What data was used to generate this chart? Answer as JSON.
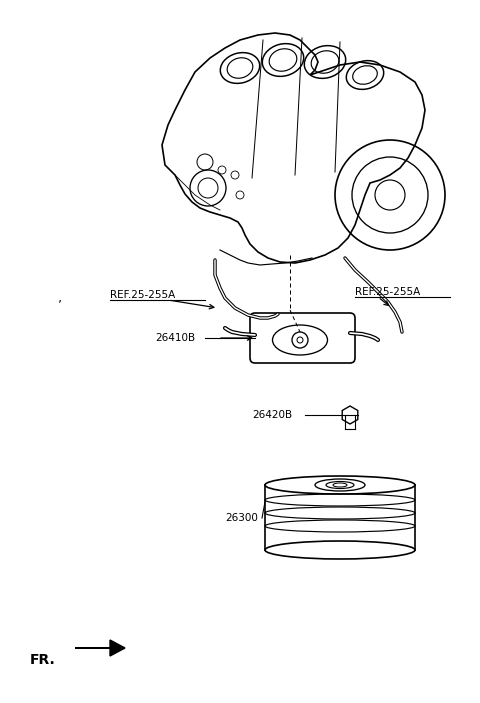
{
  "background_color": "#ffffff",
  "line_color": "#000000",
  "fig_width": 4.8,
  "fig_height": 7.03,
  "dpi": 100,
  "labels": {
    "ref_left": "REF.25-255A",
    "ref_right": "REF.25-255A",
    "part_26410B": "26410B",
    "part_26420B": "26420B",
    "part_26300": "26300",
    "fr_label": "FR."
  },
  "font_size_labels": 7.5,
  "font_size_fr": 10
}
